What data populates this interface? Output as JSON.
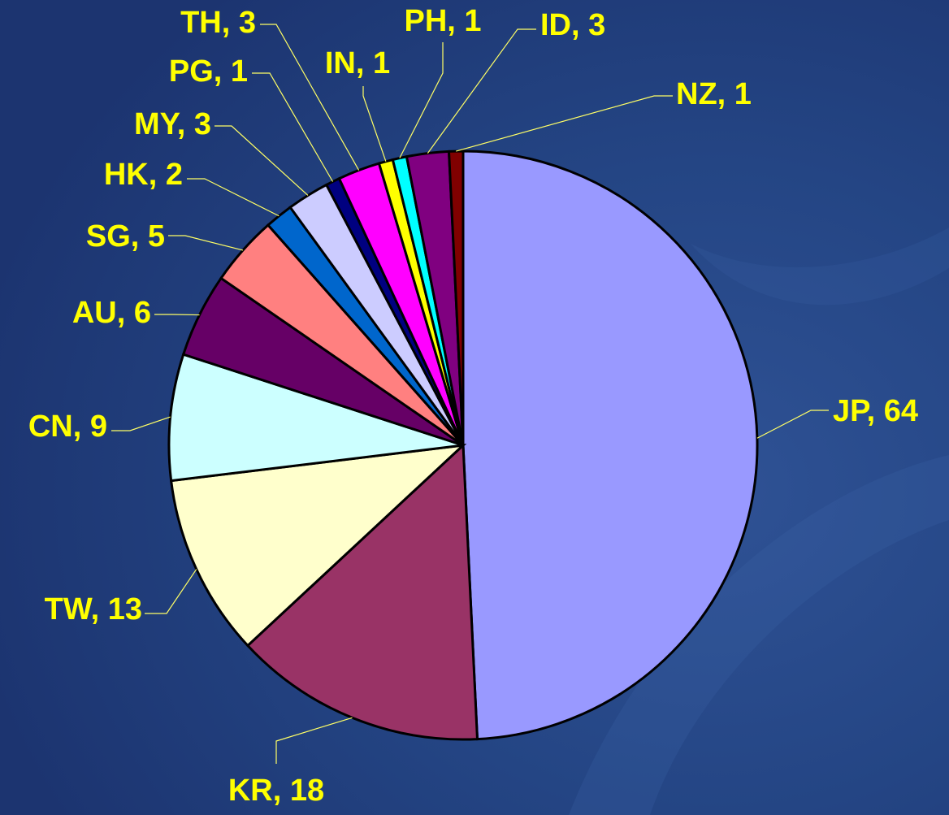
{
  "chart_data": {
    "type": "pie",
    "categories": [
      "JP",
      "KR",
      "TW",
      "CN",
      "AU",
      "SG",
      "HK",
      "MY",
      "PG",
      "TH",
      "IN",
      "PH",
      "ID",
      "NZ"
    ],
    "values": [
      64,
      18,
      13,
      9,
      6,
      5,
      2,
      3,
      1,
      3,
      1,
      1,
      3,
      1
    ],
    "value_labels": [
      "JP, 64",
      "KR, 18",
      "TW, 13",
      "CN, 9",
      "AU, 6",
      "SG, 5",
      "HK, 2",
      "MY, 3",
      "PG, 1",
      "TH, 3",
      "IN, 1",
      "PH, 1",
      "ID, 3",
      "NZ, 1"
    ],
    "colors": [
      "#9999ff",
      "#993366",
      "#ffffcc",
      "#ccffff",
      "#660066",
      "#ff8080",
      "#0066cc",
      "#ccccff",
      "#000080",
      "#ff00ff",
      "#ffff00",
      "#00ffff",
      "#800080",
      "#800000"
    ]
  }
}
